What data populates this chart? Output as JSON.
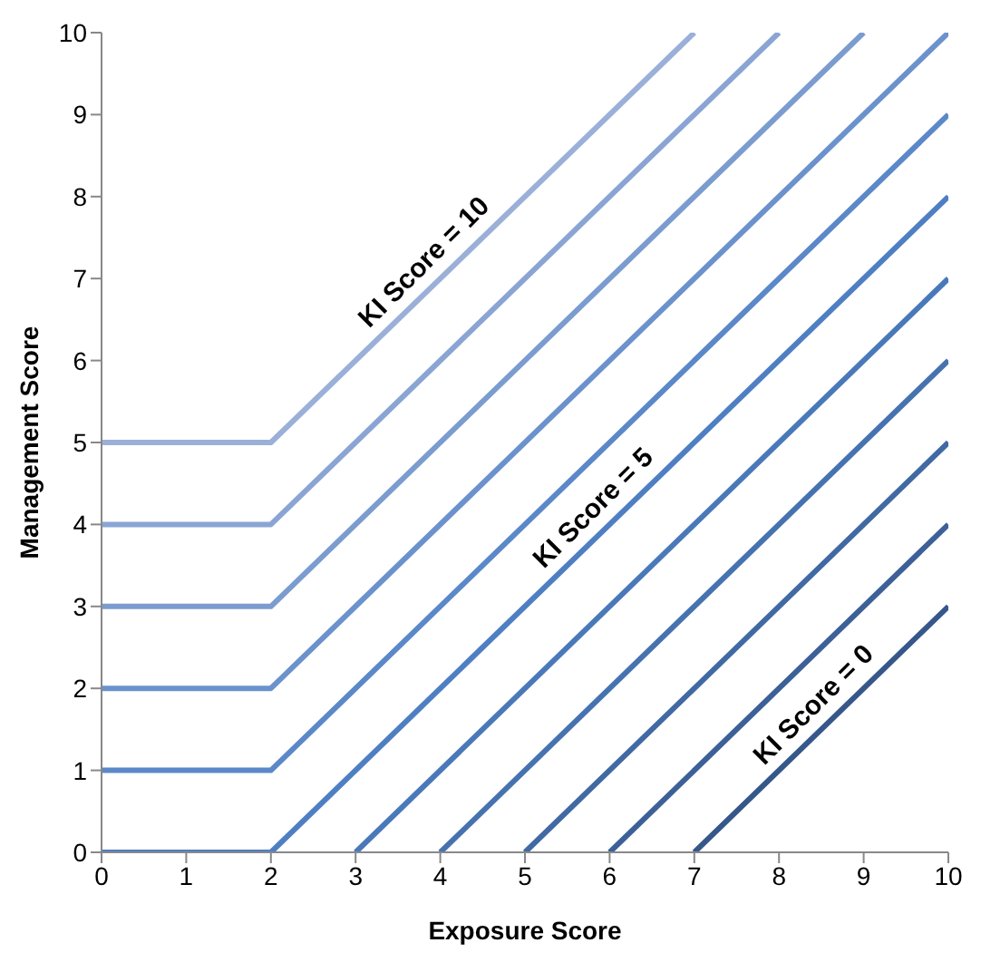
{
  "chart_data": {
    "type": "line",
    "xlabel": "Exposure Score",
    "ylabel": "Management Score",
    "xlim": [
      0,
      10
    ],
    "xticks": [
      0,
      1,
      2,
      3,
      4,
      5,
      6,
      7,
      8,
      9,
      10
    ],
    "ylim": [
      0,
      10
    ],
    "yticks": [
      0,
      1,
      2,
      3,
      4,
      5,
      6,
      7,
      8,
      9,
      10
    ],
    "grid": false,
    "legend": false,
    "marker": "none",
    "line_style": "solid",
    "series": [
      {
        "color": "#9bb0d8",
        "x": [
          0,
          2,
          7
        ],
        "values": [
          5,
          5,
          10
        ]
      },
      {
        "color": "#8aa5d4",
        "x": [
          0,
          2,
          8
        ],
        "values": [
          4,
          4,
          10
        ]
      },
      {
        "color": "#7b9ccf",
        "x": [
          0,
          2,
          9
        ],
        "values": [
          3,
          3,
          10
        ]
      },
      {
        "color": "#6b92cc",
        "x": [
          0,
          2,
          10
        ],
        "values": [
          2,
          2,
          10
        ]
      },
      {
        "color": "#5b88c8",
        "x": [
          0,
          2,
          10
        ],
        "values": [
          1,
          1,
          9
        ]
      },
      {
        "color": "#4f7fc3",
        "x": [
          0,
          2,
          10
        ],
        "values": [
          0,
          0,
          8
        ]
      },
      {
        "color": "#4a79ba",
        "x": [
          3,
          10
        ],
        "values": [
          0,
          7
        ]
      },
      {
        "color": "#4673b0",
        "x": [
          4,
          10
        ],
        "values": [
          0,
          6
        ]
      },
      {
        "color": "#4169a3",
        "x": [
          5,
          10
        ],
        "values": [
          0,
          5
        ]
      },
      {
        "color": "#3c6097",
        "x": [
          6,
          10
        ],
        "values": [
          0,
          4
        ]
      },
      {
        "color": "#36578a",
        "x": [
          7,
          10
        ],
        "values": [
          0,
          3
        ]
      }
    ],
    "annotations": [
      {
        "text": "KI Score = 10",
        "x": 4,
        "y": 7
      },
      {
        "text": "KI Score = 5",
        "x": 6,
        "y": 4
      },
      {
        "text": "KI Score = 0",
        "x": 8.6,
        "y": 1.6
      }
    ]
  }
}
